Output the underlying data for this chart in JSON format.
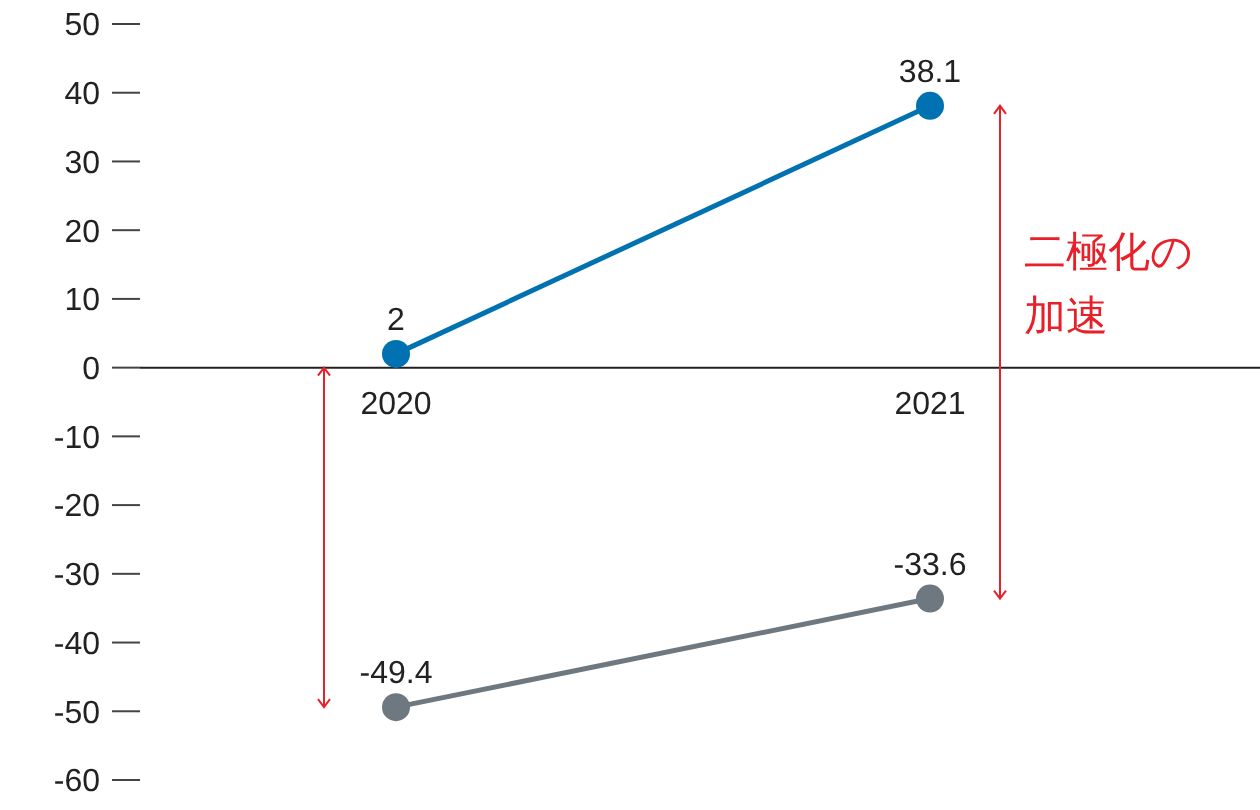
{
  "chart_data": {
    "type": "line",
    "categories": [
      "2020",
      "2021"
    ],
    "series": [
      {
        "color": "#0072b2",
        "values": [
          2,
          38.1
        ]
      },
      {
        "color": "#6e7881",
        "values": [
          -49.4,
          -33.6
        ]
      }
    ],
    "ylim": [
      -60,
      50
    ],
    "yticks": [
      -60,
      -50,
      -40,
      -30,
      -20,
      -10,
      0,
      10,
      20,
      30,
      40,
      50
    ],
    "marker": "circle",
    "line_style": "solid",
    "data_labels": true,
    "annotations": [
      "二極化の加速"
    ]
  }
}
